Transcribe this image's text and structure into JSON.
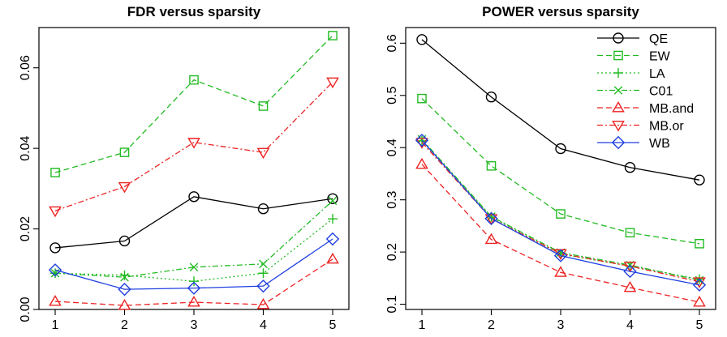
{
  "chart_data": [
    {
      "type": "line",
      "title": "FDR versus sparsity",
      "xlabel": "",
      "ylabel": "",
      "x": [
        1,
        2,
        3,
        4,
        5
      ],
      "xlim": [
        1,
        5
      ],
      "ylim": [
        0,
        0.07
      ],
      "yticks": [
        "0.00",
        "0.02",
        "0.04",
        "0.06"
      ],
      "ytick_values": [
        0,
        0.02,
        0.04,
        0.06
      ],
      "grid": false,
      "series": [
        {
          "name": "QE",
          "color": "#000000",
          "marker": "circle",
          "dash": "solid",
          "values": [
            0.0153,
            0.017,
            0.028,
            0.025,
            0.0275
          ]
        },
        {
          "name": "EW",
          "color": "#22bb22",
          "marker": "square",
          "dash": "dashed",
          "values": [
            0.034,
            0.039,
            0.057,
            0.0505,
            0.068
          ]
        },
        {
          "name": "LA",
          "color": "#22bb22",
          "marker": "plus",
          "dash": "dotted",
          "values": [
            0.009,
            0.0085,
            0.007,
            0.009,
            0.0225
          ]
        },
        {
          "name": "C01",
          "color": "#22bb22",
          "marker": "cross",
          "dash": "dotdash",
          "values": [
            0.009,
            0.008,
            0.0105,
            0.0113,
            0.027
          ]
        },
        {
          "name": "MB.and",
          "color": "#ee2222",
          "marker": "triangle-up",
          "dash": "dashed",
          "values": [
            0.002,
            0.001,
            0.0018,
            0.0012,
            0.0125
          ]
        },
        {
          "name": "MB.or",
          "color": "#ee2222",
          "marker": "triangle-down",
          "dash": "dotdash",
          "values": [
            0.0245,
            0.0305,
            0.0415,
            0.039,
            0.0565
          ]
        },
        {
          "name": "WB",
          "color": "#1f3fe0",
          "marker": "diamond",
          "dash": "solid",
          "values": [
            0.0098,
            0.005,
            0.0053,
            0.0058,
            0.0175
          ]
        }
      ]
    },
    {
      "type": "line",
      "title": "POWER versus sparsity",
      "xlabel": "",
      "ylabel": "",
      "x": [
        1,
        2,
        3,
        4,
        5
      ],
      "xlim": [
        1,
        5
      ],
      "ylim": [
        0.09,
        0.63
      ],
      "yticks": [
        "0.1",
        "0.2",
        "0.3",
        "0.4",
        "0.5",
        "0.6"
      ],
      "ytick_values": [
        0.1,
        0.2,
        0.3,
        0.4,
        0.5,
        0.6
      ],
      "grid": false,
      "legend": "top-right",
      "series": [
        {
          "name": "QE",
          "color": "#000000",
          "marker": "circle",
          "dash": "solid",
          "values": [
            0.607,
            0.497,
            0.398,
            0.362,
            0.338
          ]
        },
        {
          "name": "EW",
          "color": "#22bb22",
          "marker": "square",
          "dash": "dashed",
          "values": [
            0.494,
            0.365,
            0.273,
            0.237,
            0.216
          ]
        },
        {
          "name": "LA",
          "color": "#22bb22",
          "marker": "plus",
          "dash": "dotted",
          "values": [
            0.413,
            0.267,
            0.196,
            0.173,
            0.148
          ]
        },
        {
          "name": "C01",
          "color": "#22bb22",
          "marker": "cross",
          "dash": "dotdash",
          "values": [
            0.416,
            0.268,
            0.199,
            0.175,
            0.146
          ]
        },
        {
          "name": "MB.and",
          "color": "#ee2222",
          "marker": "triangle-up",
          "dash": "dashed",
          "values": [
            0.368,
            0.224,
            0.161,
            0.132,
            0.104
          ]
        },
        {
          "name": "MB.or",
          "color": "#ee2222",
          "marker": "triangle-down",
          "dash": "dotdash",
          "values": [
            0.41,
            0.264,
            0.197,
            0.173,
            0.143
          ]
        },
        {
          "name": "WB",
          "color": "#1f3fe0",
          "marker": "diamond",
          "dash": "solid",
          "values": [
            0.414,
            0.264,
            0.193,
            0.163,
            0.137
          ]
        }
      ]
    }
  ]
}
